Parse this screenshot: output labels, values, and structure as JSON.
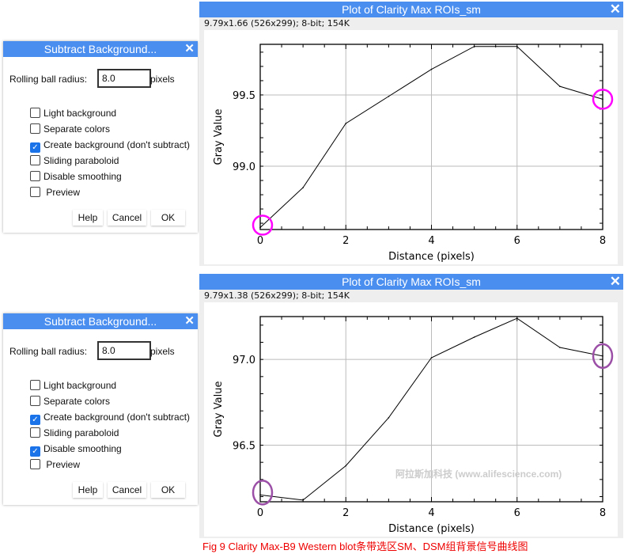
{
  "dialogs": [
    {
      "title": "Subtract Background...",
      "close": "✕",
      "radius_label": "Rolling ball radius:",
      "radius_value": "8.0",
      "radius_unit": "pixels",
      "options": [
        {
          "label": "Light background",
          "checked": false
        },
        {
          "label": "Separate colors",
          "checked": false
        },
        {
          "label": "Create background (don't subtract)",
          "checked": true
        },
        {
          "label": "Sliding paraboloid",
          "checked": false
        },
        {
          "label": "Disable smoothing",
          "checked": false
        },
        {
          "label": " Preview",
          "checked": false
        }
      ],
      "buttons": [
        "Help",
        "Cancel",
        "OK"
      ]
    },
    {
      "title": "Subtract Background...",
      "close": "✕",
      "radius_label": "Rolling ball radius:",
      "radius_value": "8.0",
      "radius_unit": "pixels",
      "options": [
        {
          "label": "Light background",
          "checked": false
        },
        {
          "label": "Separate colors",
          "checked": false
        },
        {
          "label": "Create background (don't subtract)",
          "checked": true
        },
        {
          "label": "Sliding paraboloid",
          "checked": false
        },
        {
          "label": "Disable smoothing",
          "checked": true
        },
        {
          "label": " Preview",
          "checked": false
        }
      ],
      "buttons": [
        "Help",
        "Cancel",
        "OK"
      ]
    }
  ],
  "plots": [
    {
      "title": "Plot of Clarity Max ROIs_sm",
      "info": "9.79x1.66   (526x299); 8-bit; 154K",
      "marker_color": "#ff00ff"
    },
    {
      "title": "Plot of Clarity Max ROIs_sm",
      "info": "9.79x1.38   (526x299); 8-bit; 154K",
      "marker_color": "#9b4fa6"
    }
  ],
  "chart_data": [
    {
      "type": "line",
      "xlabel": "Distance (pixels)",
      "ylabel": "Gray Value",
      "xlim": [
        0,
        8
      ],
      "ylim": [
        98.556,
        99.855
      ],
      "xticks": [
        "0",
        "2",
        "4",
        "6",
        "8"
      ],
      "yticks": [
        "99.0",
        "99.5"
      ],
      "grid": true,
      "x": [
        0,
        1,
        2,
        3,
        4,
        5,
        6,
        7,
        8
      ],
      "y": [
        98.57,
        98.85,
        99.3,
        99.49,
        99.68,
        99.84,
        99.84,
        99.56,
        99.47
      ],
      "highlighted_points": [
        0,
        8
      ]
    },
    {
      "type": "line",
      "xlabel": "Distance (pixels)",
      "ylabel": "Gray Value",
      "xlim": [
        0,
        8
      ],
      "ylim": [
        96.17,
        97.25
      ],
      "xticks": [
        "0",
        "2",
        "4",
        "6",
        "8"
      ],
      "yticks": [
        "96.5",
        "97.0"
      ],
      "grid": true,
      "x": [
        0,
        1,
        2,
        3,
        4,
        5,
        6,
        7,
        8
      ],
      "y": [
        96.21,
        96.18,
        96.38,
        96.66,
        97.01,
        97.13,
        97.24,
        97.07,
        97.02
      ],
      "highlighted_points": [
        0,
        8
      ]
    }
  ],
  "watermark": "阿拉斯加科技 (www.alifescience.com)",
  "caption": "Fig 9 Clarity Max-B9 Western blot条带选区SM、DSM组背景信号曲线图"
}
